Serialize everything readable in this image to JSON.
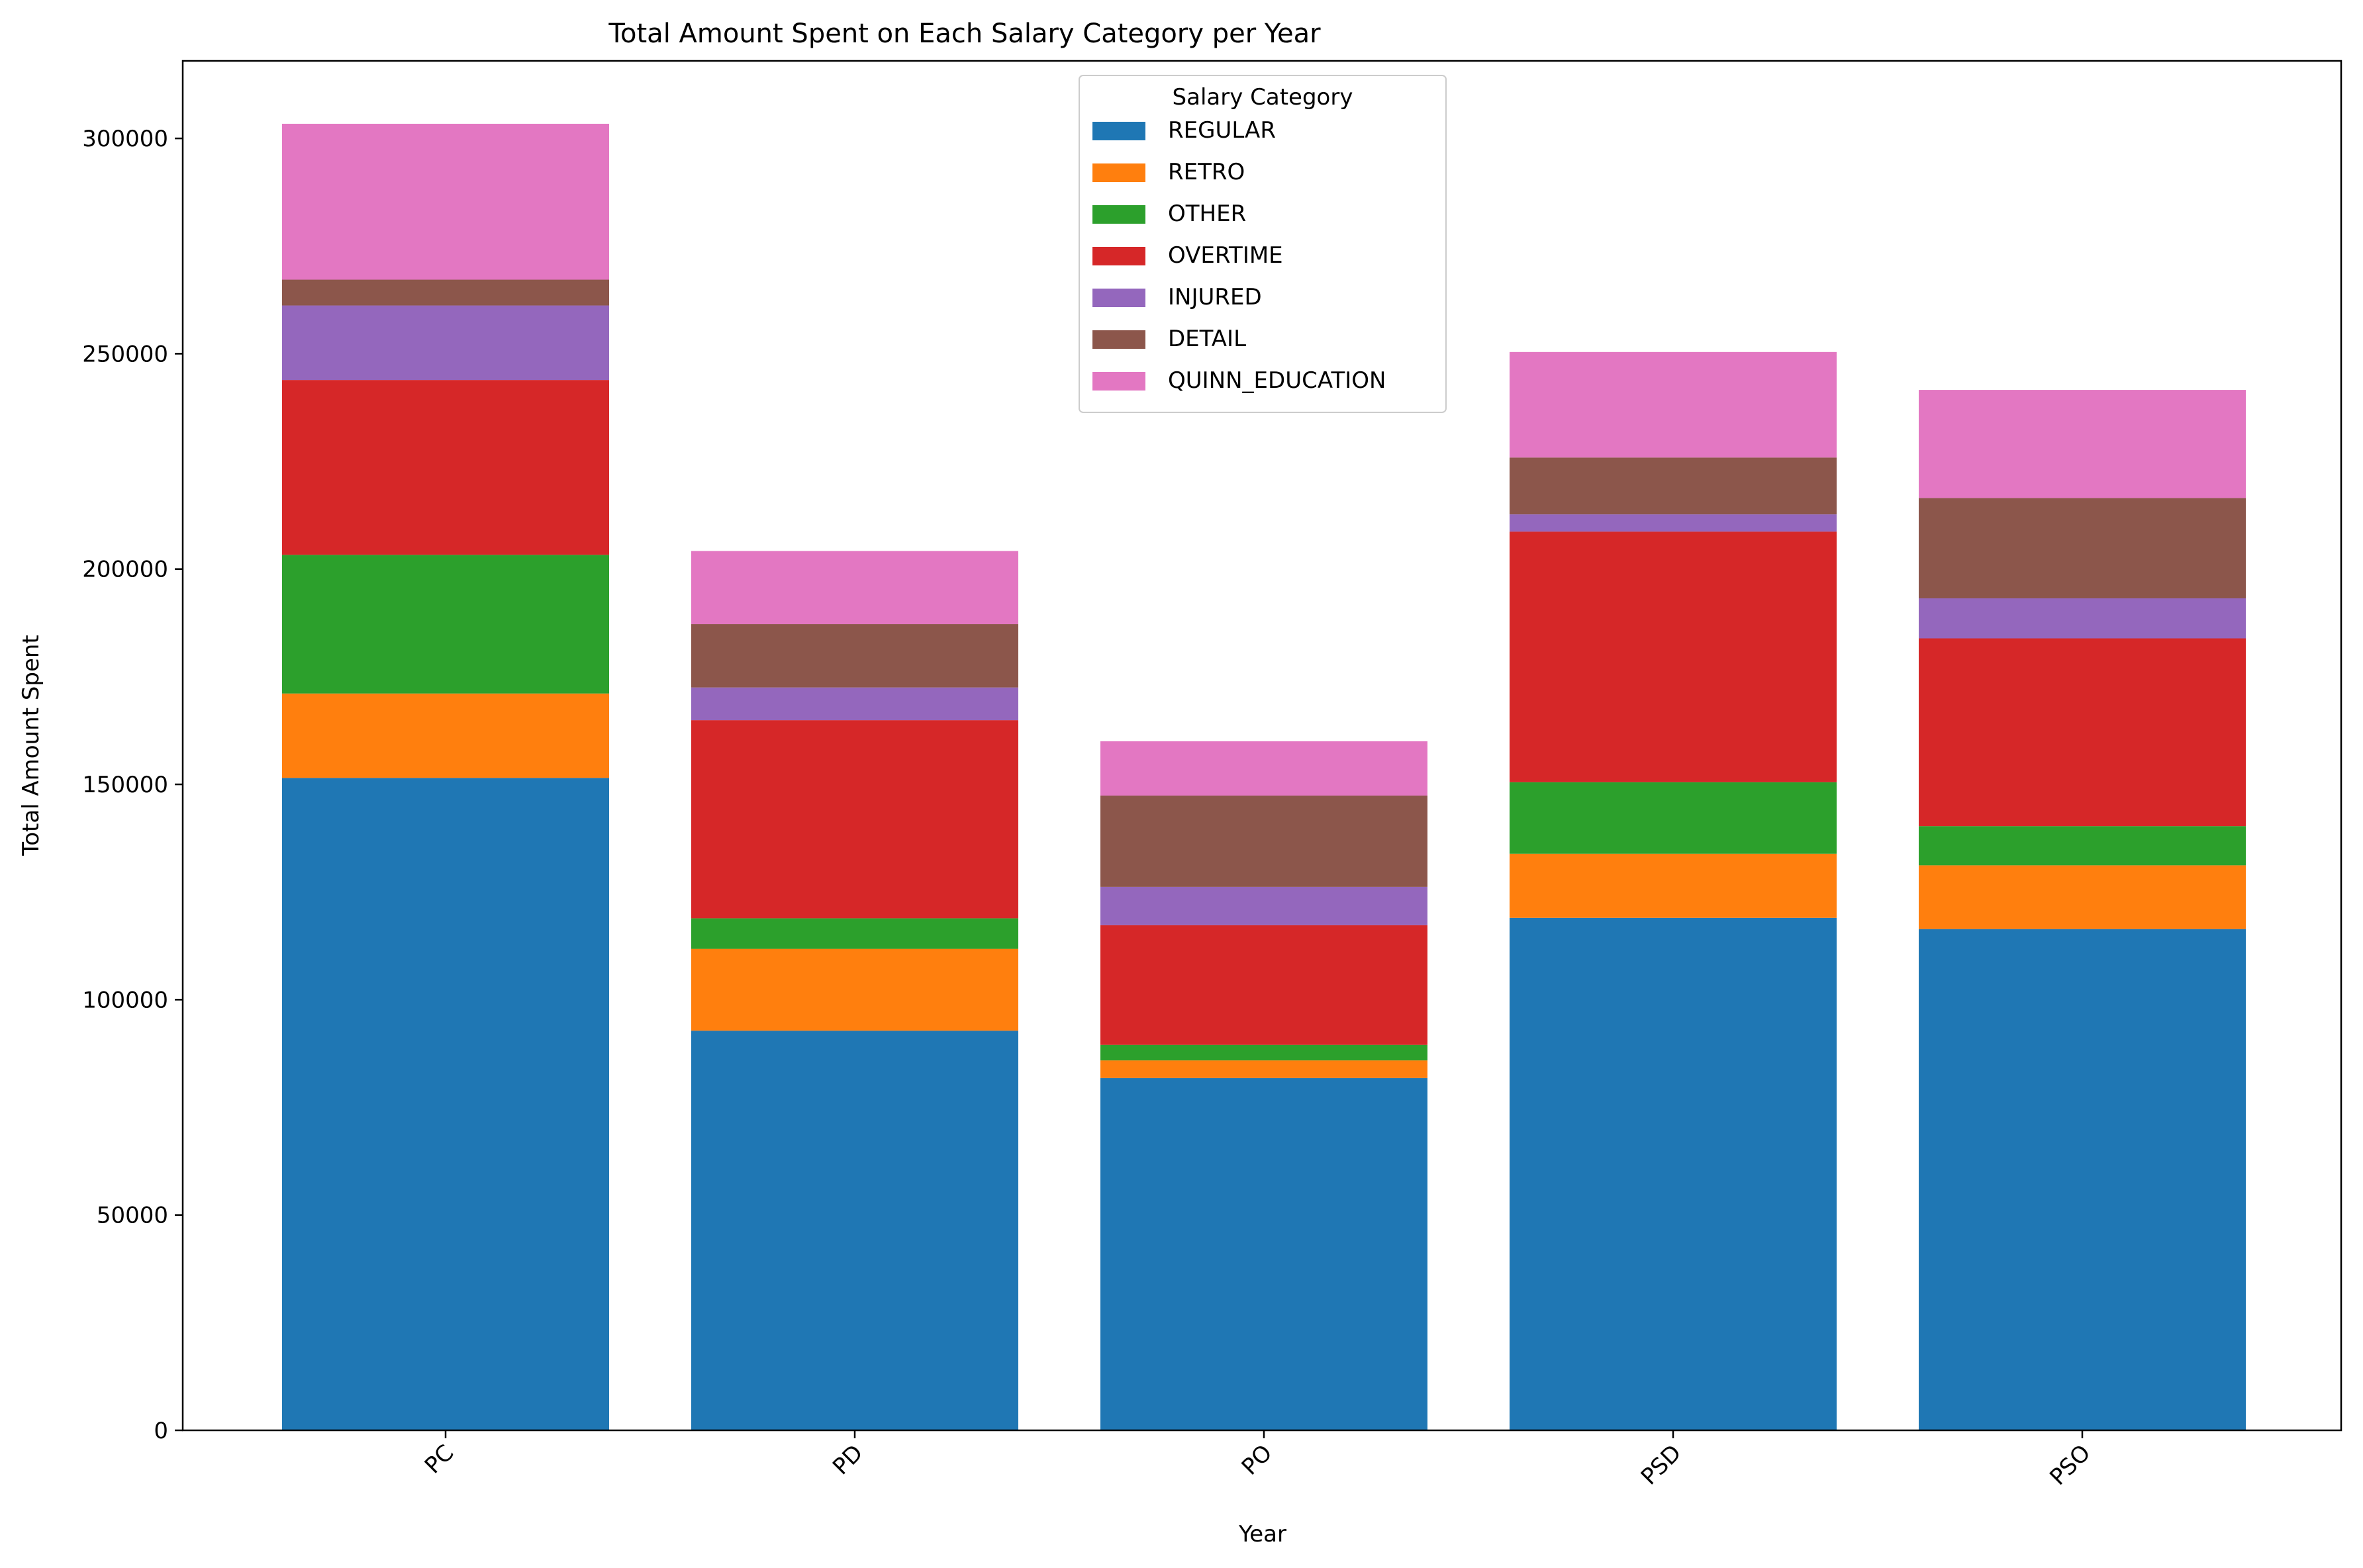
{
  "chart_data": {
    "type": "bar",
    "stacked": true,
    "title": "Total Amount Spent on Each Salary Category per Year",
    "xlabel": "Year",
    "ylabel": "Total Amount Spent",
    "categories": [
      "PC",
      "PD",
      "PO",
      "PSD",
      "PSO"
    ],
    "ylim": [
      0,
      318000
    ],
    "yticks": [
      0,
      50000,
      100000,
      150000,
      200000,
      250000,
      300000
    ],
    "grid": false,
    "legend": {
      "title": "Salary Category",
      "placement": "top-center"
    },
    "series": [
      {
        "name": "REGULAR",
        "color": "#1f77b4",
        "values": [
          151500,
          92800,
          81800,
          119000,
          116400
        ]
      },
      {
        "name": "RETRO",
        "color": "#ff7f0e",
        "values": [
          19600,
          19000,
          4100,
          14900,
          14800
        ]
      },
      {
        "name": "OTHER",
        "color": "#2ca02c",
        "values": [
          32200,
          7100,
          3600,
          16600,
          9100
        ]
      },
      {
        "name": "OVERTIME",
        "color": "#d62728",
        "values": [
          40600,
          46000,
          27800,
          58200,
          43600
        ]
      },
      {
        "name": "INJURED",
        "color": "#9467bd",
        "values": [
          17300,
          7600,
          8900,
          4000,
          9300
        ]
      },
      {
        "name": "DETAIL",
        "color": "#8c564b",
        "values": [
          6000,
          14700,
          21200,
          13200,
          23300
        ]
      },
      {
        "name": "QUINN_EDUCATION",
        "color": "#e377c2",
        "values": [
          36200,
          17000,
          12600,
          24500,
          25100
        ]
      }
    ]
  }
}
